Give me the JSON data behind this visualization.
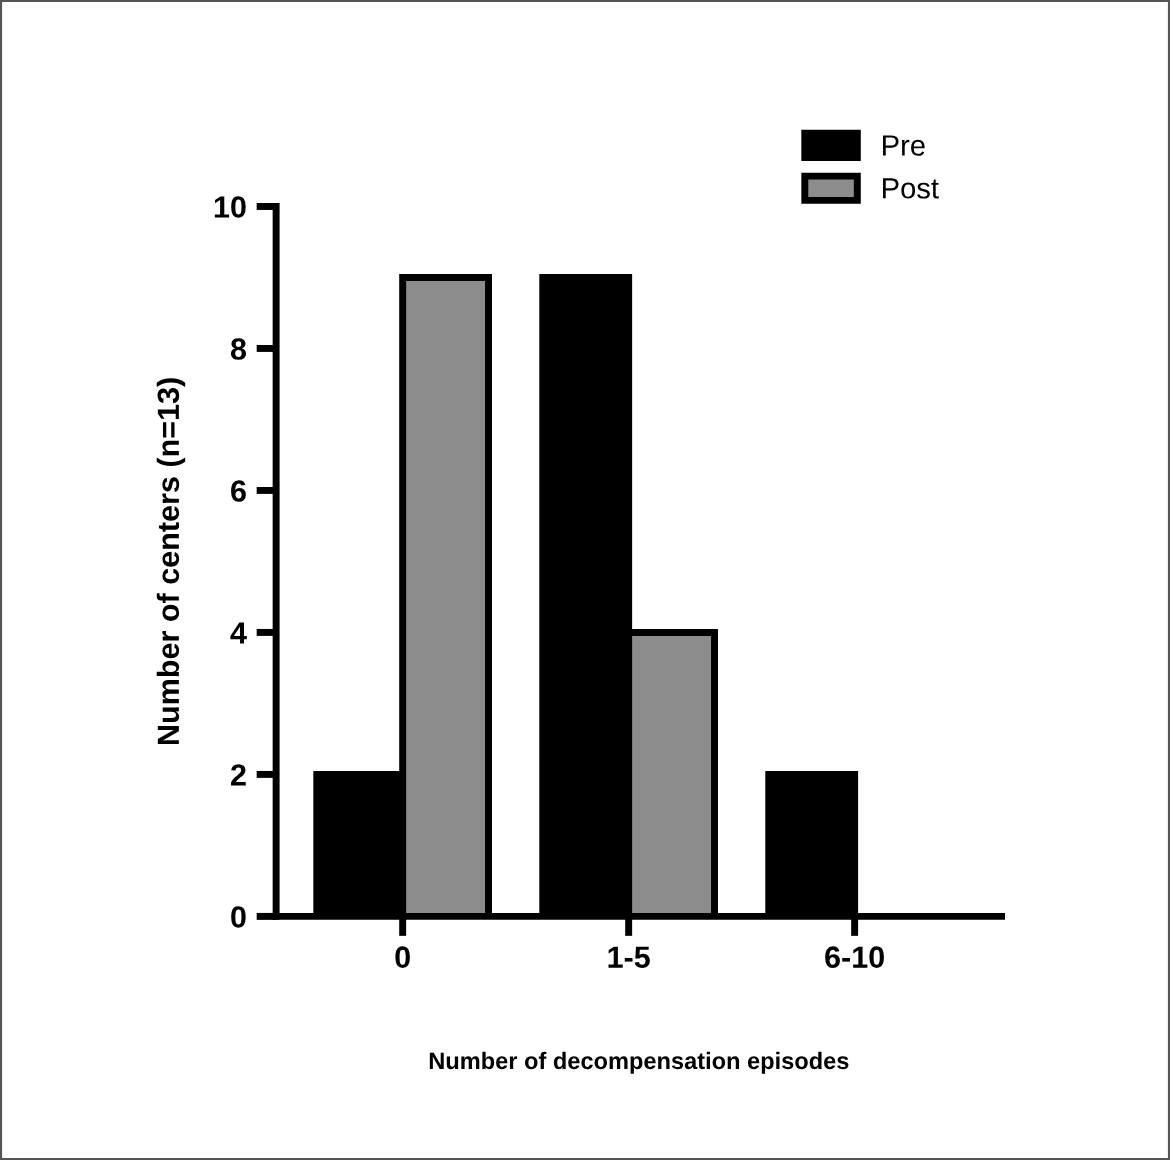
{
  "chart_data": {
    "type": "bar",
    "xlabel": "Number of decompensation episodes",
    "ylabel": "Number of centers (n=13)",
    "categories": [
      "0",
      "1-5",
      "6-10"
    ],
    "series": [
      {
        "name": "Pre",
        "color": "#000000",
        "values": [
          2,
          9,
          2
        ]
      },
      {
        "name": "Post",
        "color": "#8c8c8c",
        "values": [
          9,
          4,
          0
        ]
      }
    ],
    "ylim": [
      0,
      10
    ],
    "yticks": [
      0,
      2,
      4,
      6,
      8,
      10
    ],
    "grid": false,
    "legend": "top right"
  }
}
